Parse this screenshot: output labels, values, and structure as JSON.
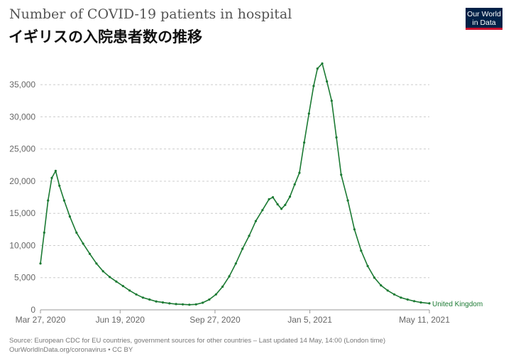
{
  "title": "Number of COVID-19 patients in hospital",
  "subtitle": "イギリスの入院患者数の推移",
  "logo": {
    "line1": "Our World",
    "line2": "in Data"
  },
  "footer": {
    "source": "Source: European CDC for EU countries, government sources for other countries – Last updated 14 May, 14:00 (London time)",
    "url": "OurWorldInData.org/coronavirus • CC BY"
  },
  "colors": {
    "series": "#1b7a33",
    "grid": "#cccccc"
  },
  "chart_data": {
    "type": "line",
    "x_axis_type": "date",
    "xlim": [
      "2020-03-27",
      "2021-05-11"
    ],
    "ylim": [
      0,
      38000
    ],
    "x_ticks": [
      {
        "date": "2020-03-27",
        "label": "Mar 27, 2020"
      },
      {
        "date": "2020-06-19",
        "label": "Jun 19, 2020"
      },
      {
        "date": "2020-09-27",
        "label": "Sep 27, 2020"
      },
      {
        "date": "2021-01-05",
        "label": "Jan 5, 2021"
      },
      {
        "date": "2021-05-11",
        "label": "May 11, 2021"
      }
    ],
    "y_ticks": [
      {
        "value": 0,
        "label": "0"
      },
      {
        "value": 5000,
        "label": "5,000"
      },
      {
        "value": 10000,
        "label": "10,000"
      },
      {
        "value": 15000,
        "label": "15,000"
      },
      {
        "value": 20000,
        "label": "20,000"
      },
      {
        "value": 25000,
        "label": "25,000"
      },
      {
        "value": 30000,
        "label": "30,000"
      },
      {
        "value": 35000,
        "label": "35,000"
      }
    ],
    "grid": true,
    "series": [
      {
        "name": "United Kingdom",
        "color": "#1b7a33",
        "points": [
          {
            "x": "2020-03-27",
            "y": 7200
          },
          {
            "x": "2020-03-31",
            "y": 12000
          },
          {
            "x": "2020-04-04",
            "y": 17000
          },
          {
            "x": "2020-04-08",
            "y": 20500
          },
          {
            "x": "2020-04-12",
            "y": 21600
          },
          {
            "x": "2020-04-16",
            "y": 19300
          },
          {
            "x": "2020-04-21",
            "y": 17000
          },
          {
            "x": "2020-04-27",
            "y": 14500
          },
          {
            "x": "2020-05-04",
            "y": 12000
          },
          {
            "x": "2020-05-11",
            "y": 10300
          },
          {
            "x": "2020-05-18",
            "y": 8700
          },
          {
            "x": "2020-05-25",
            "y": 7200
          },
          {
            "x": "2020-06-01",
            "y": 6000
          },
          {
            "x": "2020-06-08",
            "y": 5100
          },
          {
            "x": "2020-06-15",
            "y": 4400
          },
          {
            "x": "2020-06-22",
            "y": 3700
          },
          {
            "x": "2020-06-29",
            "y": 3000
          },
          {
            "x": "2020-07-06",
            "y": 2400
          },
          {
            "x": "2020-07-13",
            "y": 1900
          },
          {
            "x": "2020-07-20",
            "y": 1600
          },
          {
            "x": "2020-07-27",
            "y": 1300
          },
          {
            "x": "2020-08-03",
            "y": 1150
          },
          {
            "x": "2020-08-10",
            "y": 1000
          },
          {
            "x": "2020-08-17",
            "y": 900
          },
          {
            "x": "2020-08-24",
            "y": 850
          },
          {
            "x": "2020-08-31",
            "y": 800
          },
          {
            "x": "2020-09-07",
            "y": 850
          },
          {
            "x": "2020-09-14",
            "y": 1100
          },
          {
            "x": "2020-09-21",
            "y": 1600
          },
          {
            "x": "2020-09-28",
            "y": 2400
          },
          {
            "x": "2020-10-05",
            "y": 3600
          },
          {
            "x": "2020-10-12",
            "y": 5200
          },
          {
            "x": "2020-10-19",
            "y": 7200
          },
          {
            "x": "2020-10-26",
            "y": 9500
          },
          {
            "x": "2020-11-02",
            "y": 11500
          },
          {
            "x": "2020-11-09",
            "y": 13800
          },
          {
            "x": "2020-11-16",
            "y": 15500
          },
          {
            "x": "2020-11-23",
            "y": 17200
          },
          {
            "x": "2020-11-27",
            "y": 17500
          },
          {
            "x": "2020-12-02",
            "y": 16400
          },
          {
            "x": "2020-12-06",
            "y": 15700
          },
          {
            "x": "2020-12-10",
            "y": 16300
          },
          {
            "x": "2020-12-15",
            "y": 17600
          },
          {
            "x": "2020-12-20",
            "y": 19500
          },
          {
            "x": "2020-12-25",
            "y": 21300
          },
          {
            "x": "2020-12-30",
            "y": 26000
          },
          {
            "x": "2021-01-04",
            "y": 30500
          },
          {
            "x": "2021-01-09",
            "y": 34800
          },
          {
            "x": "2021-01-13",
            "y": 37500
          },
          {
            "x": "2021-01-18",
            "y": 38300
          },
          {
            "x": "2021-01-23",
            "y": 35500
          },
          {
            "x": "2021-01-28",
            "y": 32500
          },
          {
            "x": "2021-02-02",
            "y": 26800
          },
          {
            "x": "2021-02-07",
            "y": 21000
          },
          {
            "x": "2021-02-14",
            "y": 17000
          },
          {
            "x": "2021-02-21",
            "y": 12500
          },
          {
            "x": "2021-02-28",
            "y": 9200
          },
          {
            "x": "2021-03-07",
            "y": 6800
          },
          {
            "x": "2021-03-14",
            "y": 5000
          },
          {
            "x": "2021-03-21",
            "y": 3800
          },
          {
            "x": "2021-03-28",
            "y": 3000
          },
          {
            "x": "2021-04-04",
            "y": 2400
          },
          {
            "x": "2021-04-11",
            "y": 1900
          },
          {
            "x": "2021-04-18",
            "y": 1600
          },
          {
            "x": "2021-04-25",
            "y": 1350
          },
          {
            "x": "2021-05-02",
            "y": 1150
          },
          {
            "x": "2021-05-11",
            "y": 1000
          }
        ]
      }
    ]
  }
}
